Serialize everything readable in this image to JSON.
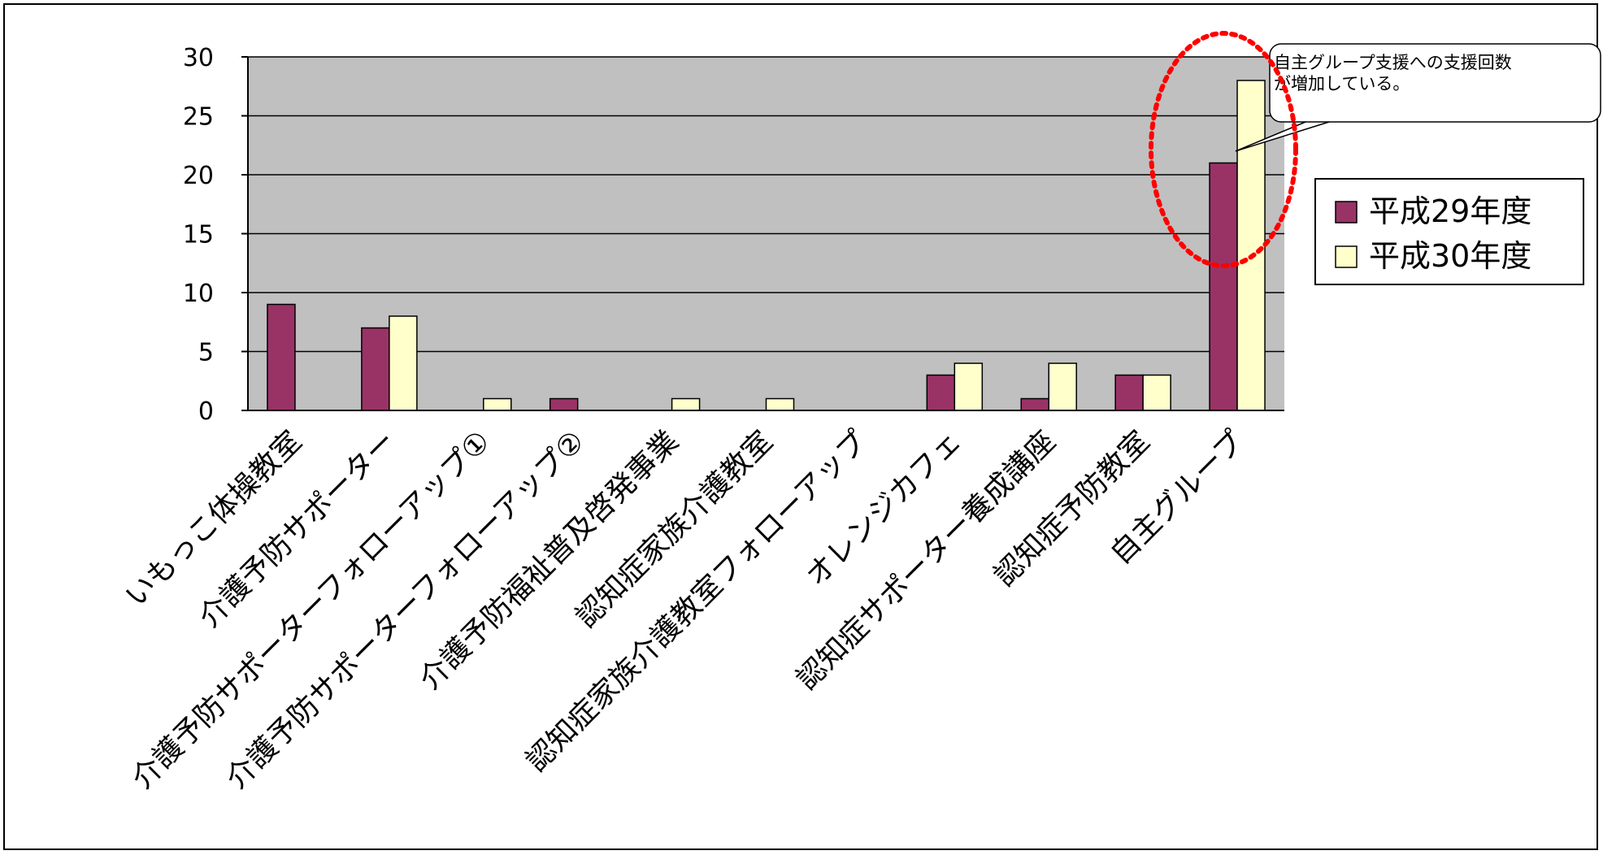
{
  "chart_data": {
    "type": "bar",
    "categories": [
      "いもっこ体操教室",
      "介護予防サポーター",
      "介護予防サポーターフォローアップ①",
      "介護予防サポーターフォローアップ②",
      "介護予防福祉普及啓発事業",
      "認知症家族介護教室",
      "認知症家族介護教室フォローアップ",
      "オレンジカフェ",
      "認知症サポーター養成講座",
      "認知症予防教室",
      "自主グループ"
    ],
    "series": [
      {
        "name": "平成29年度",
        "values": [
          9,
          7,
          0,
          1,
          0,
          0,
          0,
          3,
          1,
          3,
          21
        ],
        "color": "#993366"
      },
      {
        "name": "平成30年度",
        "values": [
          0,
          8,
          1,
          0,
          1,
          1,
          0,
          4,
          4,
          3,
          28
        ],
        "color": "#ffffcc"
      }
    ],
    "yticks": [
      0,
      5,
      10,
      15,
      20,
      25,
      30
    ],
    "ylim": [
      0,
      30
    ],
    "grid": true,
    "plot_background": "#c0c0c0",
    "legend_position": "right",
    "annotation": {
      "lines": [
        "自主グループ支援への支援回数",
        "が増加している。"
      ],
      "target_category": "自主グループ",
      "highlight_color": "#ff0000"
    }
  }
}
